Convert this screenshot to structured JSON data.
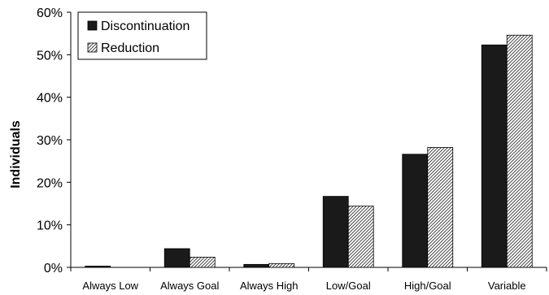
{
  "chart_data": {
    "type": "bar",
    "ylabel": "Individuals",
    "xlabel": "",
    "categories": [
      "Always Low",
      "Always Goal",
      "Always High",
      "Low/Goal",
      "High/Goal",
      "Variable"
    ],
    "series": [
      {
        "name": "Discontinuation",
        "values": [
          0.3,
          4.4,
          0.7,
          16.7,
          26.6,
          52.3
        ],
        "color": "#1a1a1a",
        "pattern": "solid"
      },
      {
        "name": "Reduction",
        "values": [
          0.0,
          2.4,
          0.9,
          14.4,
          28.2,
          54.6
        ],
        "color": "#ffffff",
        "pattern": "diagonal-hatch"
      }
    ],
    "ylim": [
      0,
      60
    ],
    "yticks": [
      0,
      10,
      20,
      30,
      40,
      50,
      60
    ],
    "ytick_labels": [
      "0%",
      "10%",
      "20%",
      "30%",
      "40%",
      "50%",
      "60%"
    ],
    "grid": false,
    "legend_position": "top-left"
  }
}
